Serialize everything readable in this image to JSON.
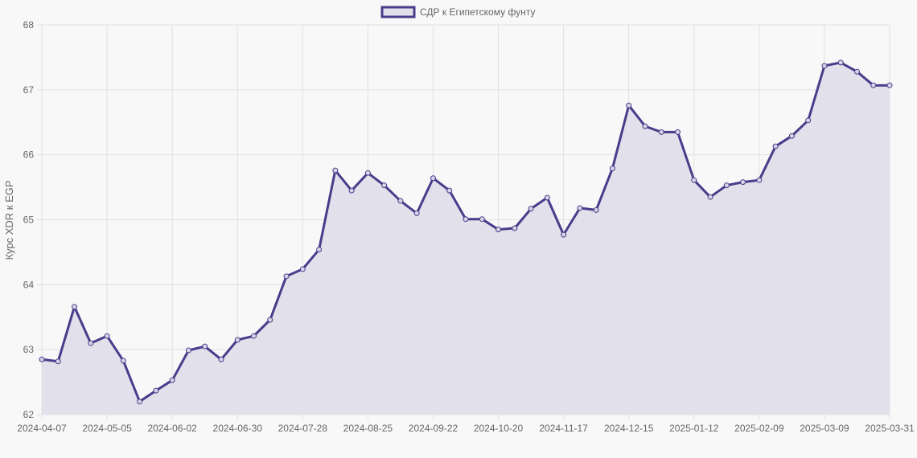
{
  "chart_data": {
    "type": "line",
    "legend": {
      "label": "СДР к Египетскому фунту",
      "position": "top"
    },
    "ylabel": "Курс XDR к EGP",
    "xlabel": "",
    "ylim": [
      62,
      68
    ],
    "yticks": [
      "62",
      "63",
      "64",
      "65",
      "66",
      "67",
      "68"
    ],
    "grid": true,
    "colors": {
      "line": "#483d8b",
      "fill": "#e2e0ea",
      "grid": "#e0e0e0"
    },
    "categories": [
      "2024-04-07",
      "2024-04-14",
      "2024-04-21",
      "2024-04-28",
      "2024-05-05",
      "2024-05-12",
      "2024-05-19",
      "2024-05-26",
      "2024-06-02",
      "2024-06-09",
      "2024-06-16",
      "2024-06-23",
      "2024-06-30",
      "2024-07-07",
      "2024-07-14",
      "2024-07-21",
      "2024-07-28",
      "2024-08-04",
      "2024-08-11",
      "2024-08-18",
      "2024-08-25",
      "2024-09-01",
      "2024-09-08",
      "2024-09-15",
      "2024-09-22",
      "2024-09-29",
      "2024-10-06",
      "2024-10-13",
      "2024-10-20",
      "2024-10-27",
      "2024-11-03",
      "2024-11-10",
      "2024-11-17",
      "2024-11-24",
      "2024-12-01",
      "2024-12-08",
      "2024-12-15",
      "2024-12-22",
      "2024-12-29",
      "2025-01-05",
      "2025-01-12",
      "2025-01-19",
      "2025-01-26",
      "2025-02-02",
      "2025-02-09",
      "2025-02-16",
      "2025-02-23",
      "2025-03-02",
      "2025-03-09",
      "2025-03-16",
      "2025-03-23",
      "2025-03-30",
      "2025-03-31"
    ],
    "xtick_labels": [
      "2024-04-07",
      "2024-05-05",
      "2024-06-02",
      "2024-06-30",
      "2024-07-28",
      "2024-08-25",
      "2024-09-22",
      "2024-10-20",
      "2024-11-17",
      "2024-12-15",
      "2025-01-12",
      "2025-02-09",
      "2025-03-09",
      "2025-03-31"
    ],
    "series": [
      {
        "name": "СДР к Египетскому фунту",
        "values": [
          62.85,
          62.82,
          63.66,
          63.1,
          63.21,
          62.83,
          62.2,
          62.37,
          62.53,
          62.99,
          63.05,
          62.85,
          63.15,
          63.21,
          63.46,
          64.13,
          64.24,
          64.54,
          65.76,
          65.45,
          65.72,
          65.53,
          65.29,
          65.1,
          65.64,
          65.45,
          65.01,
          65.01,
          64.85,
          64.87,
          65.17,
          65.34,
          64.77,
          65.18,
          65.15,
          65.79,
          66.76,
          66.44,
          66.35,
          66.35,
          65.61,
          65.35,
          65.53,
          65.58,
          65.61,
          66.13,
          66.29,
          66.53,
          67.37,
          67.42,
          67.28,
          67.07,
          67.07
        ]
      }
    ]
  }
}
